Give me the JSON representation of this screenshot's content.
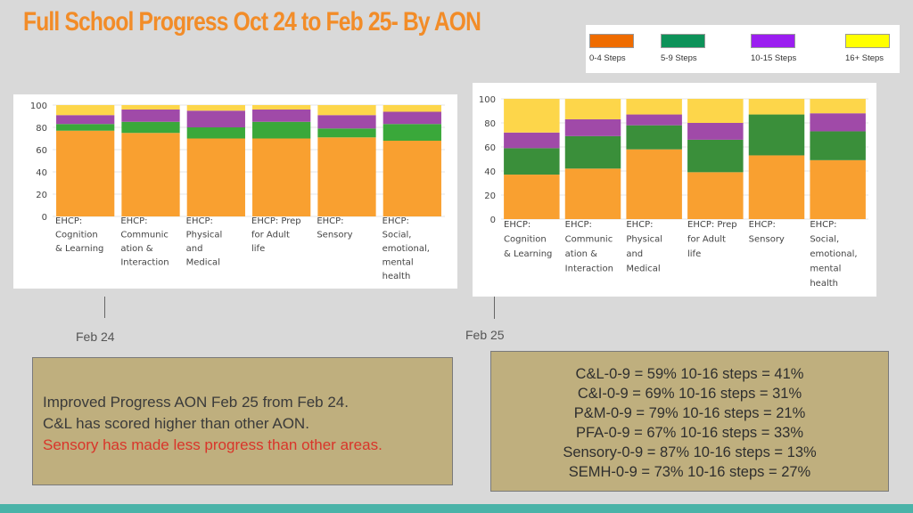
{
  "title": "Full School Progress Oct 24 to Feb 25- By AON",
  "legend": [
    {
      "label": "0-4 Steps",
      "color": "#ef6c00"
    },
    {
      "label": "5-9 Steps",
      "color": "#0d9259"
    },
    {
      "label": "10-15 Steps",
      "color": "#9b1ef0"
    },
    {
      "label": "16+ Steps",
      "color": "#ffff00"
    }
  ],
  "dates": {
    "left": "Feb 24",
    "right": "Feb 25"
  },
  "notes": {
    "line1": "Improved Progress AON Feb 25 from Feb 24.",
    "line2": "C&L has scored higher than other AON.",
    "line3": "Sensory has made less progress than other areas."
  },
  "summary": [
    "C&L-0-9 = 59% 10-16 steps = 41%",
    "C&I-0-9 = 69%  10-16 steps = 31%",
    "P&M-0-9 = 79% 10-16 steps = 21%",
    "PFA-0-9 = 67% 10-16 steps = 33%",
    "Sensory-0-9 = 87% 10-16 steps = 13%",
    "SEMH-0-9 = 73% 10-16 steps = 27%"
  ],
  "chart_data": [
    {
      "type": "bar",
      "stacked": true,
      "date": "Feb 24",
      "categories": [
        [
          "EHCP:",
          "Cognition",
          "& Learning"
        ],
        [
          "EHCP:",
          "Communic",
          "ation &",
          "Interaction"
        ],
        [
          "EHCP:",
          "Physical",
          "and",
          "Medical"
        ],
        [
          "EHCP: Prep",
          "for Adult",
          "life"
        ],
        [
          "EHCP:",
          "Sensory"
        ],
        [
          "EHCP:",
          "Social,",
          "emotional,",
          "mental",
          "health"
        ]
      ],
      "series": [
        {
          "color": "#f9a030",
          "values": [
            77,
            75,
            70,
            70,
            71,
            68
          ]
        },
        {
          "color": "#3aa83a",
          "values": [
            6,
            10,
            10,
            15,
            8,
            15
          ]
        },
        {
          "color": "#a04aa8",
          "values": [
            8,
            11,
            15,
            11,
            12,
            11
          ]
        },
        {
          "color": "#fdd64a",
          "values": [
            9,
            4,
            5,
            4,
            9,
            6
          ]
        }
      ],
      "yticks": [
        0,
        20,
        40,
        60,
        80,
        100
      ],
      "ylim": [
        0,
        100
      ]
    },
    {
      "type": "bar",
      "stacked": true,
      "date": "Feb 25",
      "categories": [
        [
          "EHCP:",
          "Cognition",
          "& Learning"
        ],
        [
          "EHCP:",
          "Communic",
          "ation &",
          "Interaction"
        ],
        [
          "EHCP:",
          "Physical",
          "and",
          "Medical"
        ],
        [
          "EHCP: Prep",
          "for Adult",
          "life"
        ],
        [
          "EHCP:",
          "Sensory"
        ],
        [
          "EHCP:",
          "Social,",
          "emotional,",
          "mental",
          "health"
        ]
      ],
      "series": [
        {
          "color": "#f9a030",
          "values": [
            37,
            42,
            58,
            39,
            53,
            49
          ]
        },
        {
          "color": "#3a8f3a",
          "values": [
            22,
            27,
            20,
            27,
            34,
            24
          ]
        },
        {
          "color": "#a04aa8",
          "values": [
            13,
            14,
            9,
            14,
            0,
            15
          ]
        },
        {
          "color": "#fdd64a",
          "values": [
            28,
            17,
            13,
            20,
            13,
            12
          ]
        }
      ],
      "yticks": [
        0,
        20,
        40,
        60,
        80,
        100
      ],
      "ylim": [
        0,
        100
      ]
    }
  ]
}
